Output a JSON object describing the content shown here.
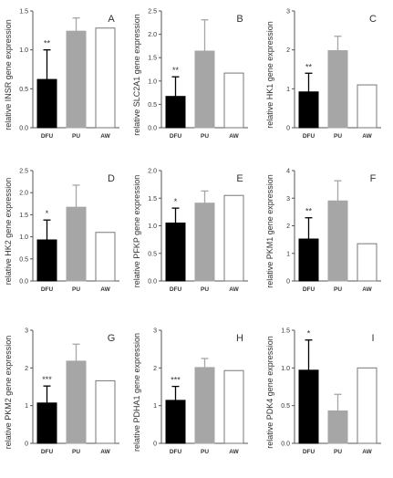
{
  "figure": {
    "background": "#ffffff",
    "axis_color": "#555555"
  },
  "chart_data": [
    {
      "type": "bar",
      "panel": "A",
      "ylabel": "relative INSR gene expression",
      "categories": [
        "DFU",
        "PU",
        "AW"
      ],
      "values": [
        0.62,
        1.24,
        1.28
      ],
      "errors": [
        0.38,
        0.17,
        null
      ],
      "significance": [
        "**",
        "",
        ""
      ],
      "ylim": [
        0,
        1.5
      ],
      "yticks": [
        "0.0",
        "0.5",
        "1.0",
        "1.5"
      ],
      "colors": [
        "#000000",
        "#a6a6a6",
        "#ffffff"
      ]
    },
    {
      "type": "bar",
      "panel": "B",
      "ylabel": "relative SLC2A1 gene expression",
      "categories": [
        "DFU",
        "PU",
        "AW"
      ],
      "values": [
        0.67,
        1.64,
        1.17
      ],
      "errors": [
        0.42,
        0.67,
        null
      ],
      "significance": [
        "**",
        "",
        ""
      ],
      "ylim": [
        0,
        2.5
      ],
      "yticks": [
        "0.0",
        "0.5",
        "1.0",
        "1.5",
        "2.0",
        "2.5"
      ],
      "colors": [
        "#000000",
        "#a6a6a6",
        "#ffffff"
      ]
    },
    {
      "type": "bar",
      "panel": "C",
      "ylabel": "relative HK1 gene expression",
      "categories": [
        "DFU",
        "PU",
        "AW"
      ],
      "values": [
        0.92,
        1.98,
        1.1
      ],
      "errors": [
        0.48,
        0.37,
        null
      ],
      "significance": [
        "**",
        "",
        ""
      ],
      "ylim": [
        0,
        3
      ],
      "yticks": [
        "0",
        "1",
        "2",
        "3"
      ],
      "colors": [
        "#000000",
        "#a6a6a6",
        "#ffffff"
      ]
    },
    {
      "type": "bar",
      "panel": "D",
      "ylabel": "relative HK2 gene expression",
      "categories": [
        "DFU",
        "PU",
        "AW"
      ],
      "values": [
        0.93,
        1.67,
        1.1
      ],
      "errors": [
        0.45,
        0.5,
        null
      ],
      "significance": [
        "*",
        "",
        ""
      ],
      "ylim": [
        0,
        2.5
      ],
      "yticks": [
        "0.0",
        "0.5",
        "1.0",
        "1.5",
        "2.0",
        "2.5"
      ],
      "colors": [
        "#000000",
        "#a6a6a6",
        "#ffffff"
      ]
    },
    {
      "type": "bar",
      "panel": "E",
      "ylabel": "relative PFKP gene expression",
      "categories": [
        "DFU",
        "PU",
        "AW"
      ],
      "values": [
        1.05,
        1.41,
        1.55
      ],
      "errors": [
        0.27,
        0.22,
        null
      ],
      "significance": [
        "*",
        "",
        ""
      ],
      "ylim": [
        0,
        2.0
      ],
      "yticks": [
        "0.0",
        "0.5",
        "1.0",
        "1.5",
        "2.0"
      ],
      "colors": [
        "#000000",
        "#a6a6a6",
        "#ffffff"
      ]
    },
    {
      "type": "bar",
      "panel": "F",
      "ylabel": "relative PKM1 gene expression",
      "categories": [
        "DFU",
        "PU",
        "AW"
      ],
      "values": [
        1.52,
        2.9,
        1.35
      ],
      "errors": [
        0.77,
        0.73,
        null
      ],
      "significance": [
        "**",
        "",
        ""
      ],
      "ylim": [
        0,
        4
      ],
      "yticks": [
        "0",
        "1",
        "2",
        "3",
        "4"
      ],
      "colors": [
        "#000000",
        "#a6a6a6",
        "#ffffff"
      ]
    },
    {
      "type": "bar",
      "panel": "G",
      "ylabel": "relative PKM2 gene expression",
      "categories": [
        "DFU",
        "PU",
        "AW"
      ],
      "values": [
        1.07,
        2.18,
        1.66
      ],
      "errors": [
        0.45,
        0.45,
        null
      ],
      "significance": [
        "***",
        "",
        ""
      ],
      "ylim": [
        0,
        3
      ],
      "yticks": [
        "0",
        "1",
        "2",
        "3"
      ],
      "colors": [
        "#000000",
        "#a6a6a6",
        "#ffffff"
      ]
    },
    {
      "type": "bar",
      "panel": "H",
      "ylabel": "relative PDHA1 gene expression",
      "categories": [
        "DFU",
        "PU",
        "AW"
      ],
      "values": [
        1.14,
        2.01,
        1.93
      ],
      "errors": [
        0.37,
        0.24,
        null
      ],
      "significance": [
        "***",
        "",
        ""
      ],
      "ylim": [
        0,
        3
      ],
      "yticks": [
        "0",
        "1",
        "2",
        "3"
      ],
      "colors": [
        "#000000",
        "#a6a6a6",
        "#ffffff"
      ]
    },
    {
      "type": "bar",
      "panel": "I",
      "ylabel": "relative PDK4 gene expression",
      "categories": [
        "DFU",
        "PU",
        "AW"
      ],
      "values": [
        0.97,
        0.43,
        1.0
      ],
      "errors": [
        0.4,
        0.22,
        null
      ],
      "significance": [
        "*",
        "",
        ""
      ],
      "ylim": [
        0,
        1.5
      ],
      "yticks": [
        "0.0",
        "0.5",
        "1.0",
        "1.5"
      ],
      "colors": [
        "#000000",
        "#a6a6a6",
        "#ffffff"
      ]
    }
  ]
}
